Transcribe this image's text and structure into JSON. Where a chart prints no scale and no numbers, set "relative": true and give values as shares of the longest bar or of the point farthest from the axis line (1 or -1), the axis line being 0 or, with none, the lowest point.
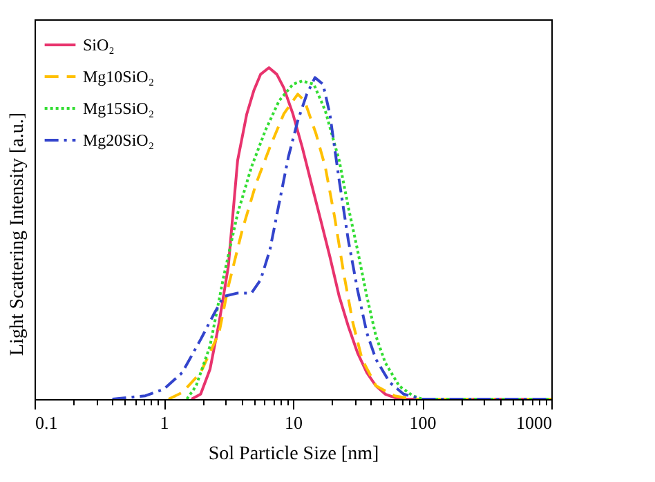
{
  "chart_data": {
    "type": "line",
    "relative": true,
    "xlabel": "Sol Particle Size [nm]",
    "ylabel": "Light Scattering Intensity [a.u.]",
    "log": "x",
    "xlim": [
      0.1,
      1000
    ],
    "xticks": [
      0.1,
      {
        "value": 0.2,
        "label": null
      },
      {
        "value": 0.3,
        "label": null
      },
      {
        "value": 0.4,
        "label": null
      },
      {
        "value": 0.5,
        "label": null
      },
      {
        "value": 0.6,
        "label": null
      },
      {
        "value": 0.7,
        "label": null
      },
      {
        "value": 0.8,
        "label": null
      },
      {
        "value": 0.9,
        "label": null
      },
      1,
      {
        "value": 2,
        "label": null
      },
      {
        "value": 3,
        "label": null
      },
      {
        "value": 4,
        "label": null
      },
      {
        "value": 5,
        "label": null
      },
      {
        "value": 6,
        "label": null
      },
      {
        "value": 7,
        "label": null
      },
      {
        "value": 8,
        "label": null
      },
      {
        "value": 9,
        "label": null
      },
      10,
      {
        "value": 20,
        "label": null
      },
      {
        "value": 30,
        "label": null
      },
      {
        "value": 40,
        "label": null
      },
      {
        "value": 50,
        "label": null
      },
      {
        "value": 60,
        "label": null
      },
      {
        "value": 70,
        "label": null
      },
      {
        "value": 80,
        "label": null
      },
      {
        "value": 90,
        "label": null
      },
      100,
      {
        "value": 200,
        "label": null
      },
      {
        "value": 300,
        "label": null
      },
      {
        "value": 400,
        "label": null
      },
      {
        "value": 500,
        "label": null
      },
      {
        "value": 600,
        "label": null
      },
      {
        "value": 700,
        "label": null
      },
      {
        "value": 800,
        "label": null
      },
      {
        "value": 900,
        "label": null
      },
      1000
    ],
    "legend": "top left",
    "grid": false,
    "series": [
      {
        "name": "SiO₂",
        "color": "#e8336d",
        "line_style": "solid",
        "x": [
          1.64,
          1.93,
          2.28,
          2.68,
          3.16,
          3.73,
          4.39,
          4.97,
          5.62,
          6.52,
          7.5,
          8.48,
          10,
          11.8,
          13.9,
          16.4,
          19.3,
          22.8,
          26.8,
          31.6,
          37.3,
          43.9,
          51.8,
          66.3,
          84.8,
          1000
        ],
        "values": [
          0,
          0.015,
          0.09,
          0.23,
          0.4,
          0.72,
          0.86,
          0.93,
          0.98,
          1,
          0.98,
          0.94,
          0.86,
          0.76,
          0.65,
          0.54,
          0.43,
          0.31,
          0.22,
          0.14,
          0.08,
          0.04,
          0.015,
          0,
          0,
          0
        ]
      },
      {
        "name": "Mg10SiO₂",
        "color": "#ffc000",
        "line_style": "dashed",
        "x": [
          1.09,
          1.39,
          1.93,
          2.68,
          3.16,
          4.05,
          5.18,
          6.63,
          8.48,
          10,
          10.9,
          12.3,
          15.1,
          17.8,
          21,
          24.7,
          29.1,
          34.3,
          43.9,
          61.1,
          84.8,
          1000
        ],
        "values": [
          0,
          0.02,
          0.08,
          0.2,
          0.34,
          0.51,
          0.65,
          0.76,
          0.86,
          0.9,
          0.92,
          0.9,
          0.8,
          0.7,
          0.55,
          0.38,
          0.23,
          0.12,
          0.04,
          0.01,
          0,
          0
        ]
      },
      {
        "name": "Mg15SiO₂",
        "color": "#33dd33",
        "line_style": "dotted",
        "x": [
          1.51,
          1.78,
          2.28,
          2.91,
          3.73,
          4.77,
          6.11,
          7.81,
          10,
          11.8,
          14.5,
          17.8,
          22.8,
          26.8,
          31.6,
          37.3,
          43.9,
          51.8,
          66.3,
          84.8,
          100,
          1000
        ],
        "values": [
          0,
          0.04,
          0.16,
          0.37,
          0.56,
          0.7,
          0.81,
          0.9,
          0.95,
          0.96,
          0.95,
          0.87,
          0.72,
          0.58,
          0.45,
          0.31,
          0.19,
          0.11,
          0.04,
          0.01,
          0,
          0
        ]
      },
      {
        "name": "Mg20SiO₂",
        "color": "#3344cc",
        "line_style": "dashdot",
        "x": [
          0.4,
          0.72,
          1,
          1.39,
          1.93,
          2.47,
          2.91,
          3.73,
          4.77,
          5.62,
          6.63,
          7.81,
          9.21,
          10.9,
          12.8,
          14.8,
          17.1,
          19.3,
          22.8,
          26.8,
          31.6,
          37.3,
          43.9,
          56.2,
          71.9,
          100,
          1000
        ],
        "values": [
          0,
          0.01,
          0.03,
          0.08,
          0.18,
          0.26,
          0.31,
          0.32,
          0.32,
          0.36,
          0.45,
          0.59,
          0.73,
          0.84,
          0.92,
          0.97,
          0.95,
          0.86,
          0.66,
          0.48,
          0.33,
          0.2,
          0.12,
          0.05,
          0.015,
          0,
          0
        ]
      }
    ]
  }
}
